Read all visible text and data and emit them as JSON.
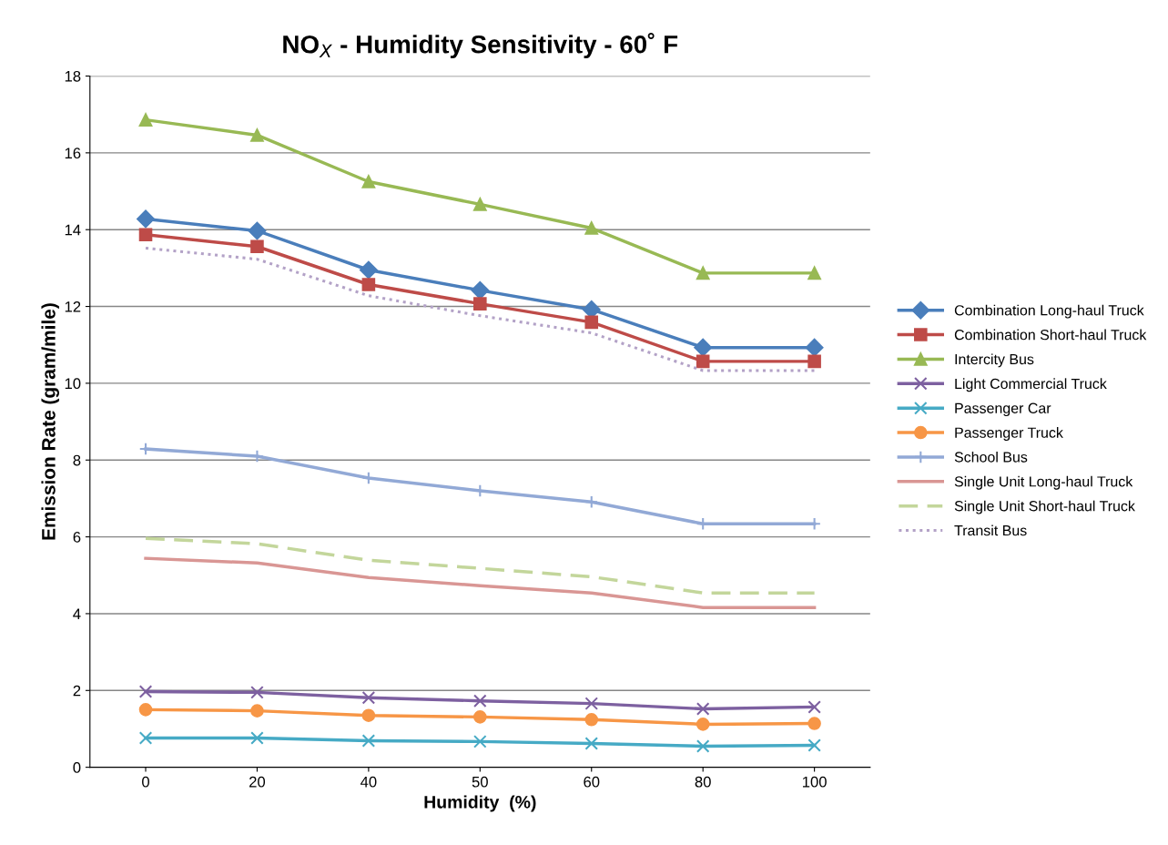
{
  "chart_data": {
    "type": "line",
    "title": "NO$_{X}$ - Humidity Sensitivity - 60˚ F",
    "xlabel": "Humidity  (%)",
    "ylabel": "Emission Rate (gram/mile)",
    "categories": [
      "0",
      "20",
      "40",
      "50",
      "60",
      "80",
      "100"
    ],
    "ylim": [
      0,
      18
    ],
    "yticks": [
      0,
      2,
      4,
      6,
      8,
      10,
      12,
      14,
      16,
      18
    ],
    "grid": "y",
    "legend": "right",
    "series": [
      {
        "name": "Combination Long-haul Truck",
        "color": "#4a7ebb",
        "marker": "diamond",
        "values": [
          14.28,
          13.97,
          12.95,
          12.42,
          11.92,
          10.93,
          10.93
        ]
      },
      {
        "name": "Combination Short-haul Truck",
        "color": "#be4b48",
        "marker": "square",
        "values": [
          13.87,
          13.56,
          12.57,
          12.07,
          11.59,
          10.57,
          10.57
        ]
      },
      {
        "name": "Intercity Bus",
        "color": "#98b954",
        "marker": "triangle",
        "values": [
          16.86,
          16.46,
          15.25,
          14.66,
          14.04,
          12.87,
          12.87
        ]
      },
      {
        "name": "Light Commercial Truck",
        "color": "#7d60a0",
        "marker": "cross",
        "values": [
          1.97,
          1.95,
          1.81,
          1.73,
          1.66,
          1.52,
          1.57
        ]
      },
      {
        "name": "Passenger Car",
        "color": "#46aac5",
        "marker": "cross",
        "values": [
          0.76,
          0.76,
          0.69,
          0.67,
          0.62,
          0.55,
          0.57
        ]
      },
      {
        "name": "Passenger Truck",
        "color": "#f79646",
        "marker": "circle",
        "values": [
          1.5,
          1.47,
          1.35,
          1.31,
          1.24,
          1.12,
          1.14
        ]
      },
      {
        "name": "School Bus",
        "color": "#92a9d6",
        "marker": "plus",
        "values": [
          8.29,
          8.1,
          7.53,
          7.2,
          6.91,
          6.34,
          6.34
        ]
      },
      {
        "name": "Single Unit Long-haul Truck",
        "color": "#d99694",
        "marker": "none",
        "values": [
          5.44,
          5.32,
          4.94,
          4.73,
          4.54,
          4.16,
          4.16
        ]
      },
      {
        "name": "Single Unit Short-haul Truck",
        "color": "#c3d69b",
        "marker": "none",
        "line_style": "dashed",
        "values": [
          5.96,
          5.82,
          5.39,
          5.18,
          4.96,
          4.54,
          4.54
        ]
      },
      {
        "name": "Transit Bus",
        "color": "#b3a2c7",
        "marker": "none",
        "line_style": "dotted",
        "values": [
          13.52,
          13.23,
          12.28,
          11.76,
          11.31,
          10.33,
          10.33
        ]
      }
    ]
  }
}
